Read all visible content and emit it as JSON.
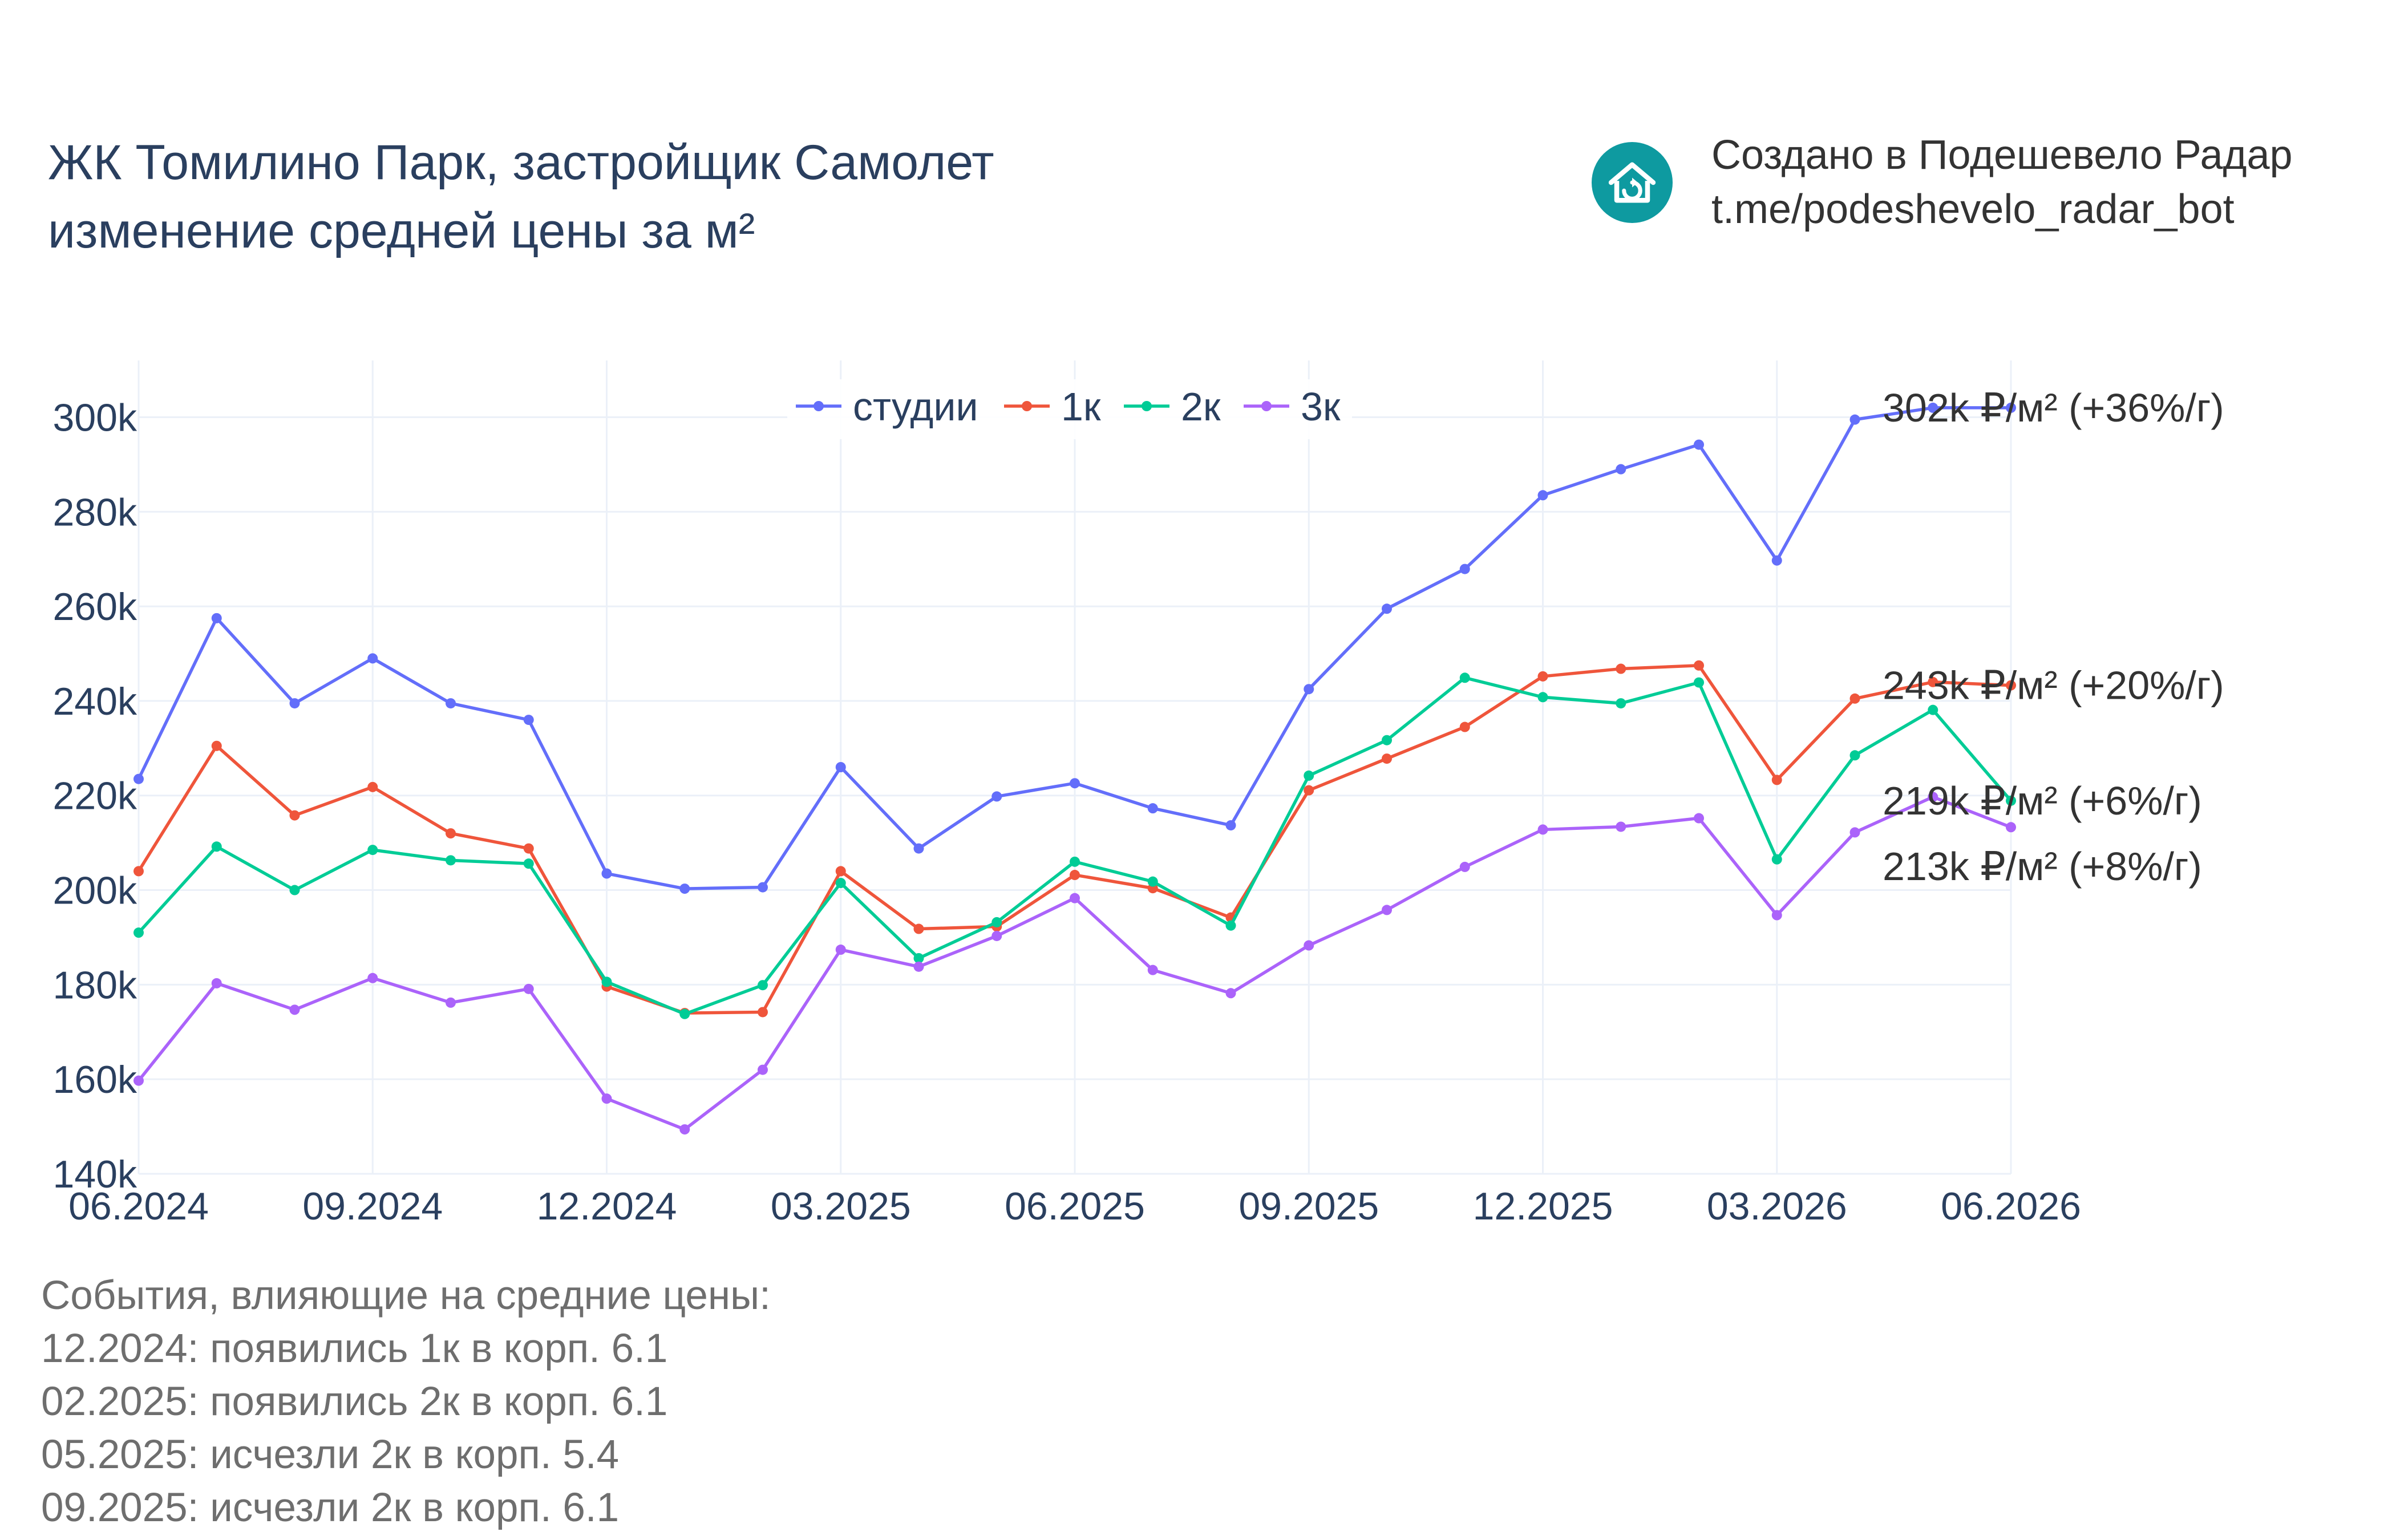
{
  "header": {
    "title_line1": "ЖК Томилино Парк, застройщик Самолет",
    "title_line2": "изменение средней цены за м²"
  },
  "credit": {
    "line1": "Создано в Подешевело Радар",
    "line2": "t.me/podeshevelo_radar_bot",
    "logo_icon": "house-refresh-icon",
    "logo_color": "#0e9aa0"
  },
  "events": {
    "heading": "События, влияющие на средние цены:",
    "items": [
      "12.2024: появились 1к в корп. 6.1",
      "02.2025: появились 2к в корп. 6.1",
      "05.2025: исчезли 2к в корп. 5.4",
      "09.2025: исчезли 2к в корп. 6.1"
    ]
  },
  "chart_data": {
    "type": "line",
    "x": [
      "06.2024",
      "07.2024",
      "08.2024",
      "09.2024",
      "10.2024",
      "11.2024",
      "12.2024",
      "01.2025",
      "02.2025",
      "03.2025",
      "04.2025",
      "05.2025",
      "06.2025",
      "07.2025",
      "08.2025",
      "09.2025",
      "10.2025",
      "11.2025",
      "12.2025",
      "01.2026",
      "02.2026",
      "03.2026",
      "04.2026",
      "05.2026",
      "06.2026"
    ],
    "x_tick_labels": [
      "06.2024",
      "09.2024",
      "12.2024",
      "03.2025",
      "06.2025",
      "09.2025",
      "12.2025",
      "03.2026",
      "06.2026"
    ],
    "ylim": [
      140000,
      312000
    ],
    "y_ticks": [
      140000,
      160000,
      180000,
      200000,
      220000,
      240000,
      260000,
      280000,
      300000
    ],
    "y_tick_labels": [
      "140k",
      "160k",
      "180k",
      "200k",
      "220k",
      "240k",
      "260k",
      "280k",
      "300k"
    ],
    "grid": true,
    "legend_position": "top-center",
    "series": [
      {
        "name": "студии",
        "color": "#636efa",
        "values": [
          223500,
          257500,
          239500,
          249000,
          239500,
          236000,
          203500,
          200300,
          200600,
          226000,
          208800,
          219800,
          222600,
          217300,
          213700,
          242500,
          259500,
          267900,
          283500,
          289000,
          294200,
          269700,
          299500,
          302000,
          302000
        ],
        "end_label": "302k ₽/м² (+36%/г)"
      },
      {
        "name": "1к",
        "color": "#ef553b",
        "values": [
          204000,
          230500,
          215800,
          221800,
          212000,
          208800,
          179600,
          174000,
          174200,
          204000,
          191800,
          192300,
          203200,
          200400,
          194200,
          221100,
          227800,
          234500,
          245200,
          246800,
          247500,
          223300,
          240500,
          244000,
          243300
        ],
        "end_label": "243k ₽/м² (+20%/г)"
      },
      {
        "name": "2к",
        "color": "#00cc96",
        "values": [
          191000,
          209200,
          200000,
          208500,
          206300,
          205600,
          180600,
          173800,
          179900,
          201500,
          185600,
          193200,
          206000,
          201800,
          192500,
          224200,
          231700,
          244900,
          240800,
          239500,
          243900,
          206500,
          228500,
          238100,
          218900
        ],
        "end_label": "219k ₽/м² (+6%/г)"
      },
      {
        "name": "3к",
        "color": "#ab63fa",
        "values": [
          159700,
          180300,
          174700,
          181400,
          176200,
          179100,
          155900,
          149400,
          162000,
          187400,
          183800,
          190300,
          198300,
          183100,
          178200,
          188300,
          195800,
          204900,
          212800,
          213400,
          215200,
          194700,
          212200,
          219700,
          213300
        ],
        "end_label": "213k ₽/м² (+8%/г)"
      }
    ]
  }
}
